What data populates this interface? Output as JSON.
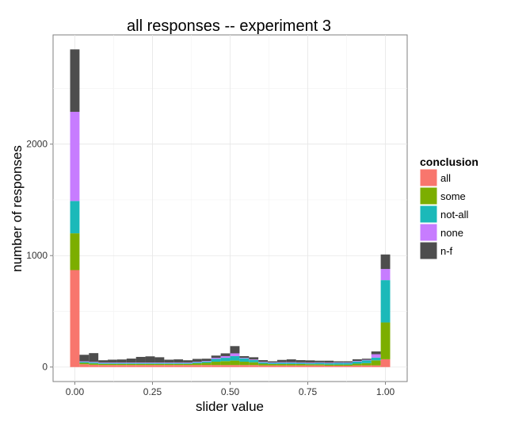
{
  "chart_data": {
    "type": "bar",
    "stacked": true,
    "title": "all responses -- experiment 3",
    "xlabel": "slider value",
    "ylabel": "number of responses",
    "xlim": [
      -0.07,
      1.07
    ],
    "ylim": [
      -130,
      2980
    ],
    "x_ticks": [
      0.0,
      0.25,
      0.5,
      0.75,
      1.0
    ],
    "x_tick_labels": [
      "0.00",
      "0.25",
      "0.50",
      "0.75",
      "1.00"
    ],
    "y_ticks": [
      0,
      1000,
      2000
    ],
    "y_tick_labels": [
      "0",
      "1000",
      "2000"
    ],
    "grid": true,
    "legend": {
      "title": "conclusion",
      "position": "right"
    },
    "bin_width": 0.0303,
    "bin_centers": [
      0.0,
      0.0303,
      0.0606,
      0.0909,
      0.1212,
      0.1515,
      0.1818,
      0.2121,
      0.2424,
      0.2727,
      0.303,
      0.3333,
      0.3636,
      0.3939,
      0.4242,
      0.4545,
      0.4848,
      0.5152,
      0.5455,
      0.5758,
      0.6061,
      0.6364,
      0.6667,
      0.697,
      0.7273,
      0.7576,
      0.7879,
      0.8182,
      0.8485,
      0.8788,
      0.9091,
      0.9394,
      0.9697,
      1.0
    ],
    "series": [
      {
        "name": "all",
        "color": "#F8766D",
        "values": [
          870,
          25,
          20,
          18,
          18,
          18,
          18,
          18,
          18,
          18,
          18,
          18,
          18,
          18,
          18,
          18,
          18,
          18,
          18,
          18,
          15,
          15,
          15,
          15,
          15,
          15,
          15,
          12,
          12,
          12,
          15,
          15,
          15,
          70
        ]
      },
      {
        "name": "some",
        "color": "#7CAE00",
        "values": [
          330,
          12,
          12,
          10,
          10,
          10,
          10,
          10,
          10,
          10,
          10,
          10,
          10,
          15,
          20,
          30,
          35,
          40,
          30,
          25,
          15,
          12,
          12,
          12,
          12,
          10,
          10,
          10,
          10,
          10,
          15,
          20,
          45,
          330
        ]
      },
      {
        "name": "not-all",
        "color": "#1BB9B9",
        "values": [
          290,
          10,
          10,
          8,
          8,
          8,
          8,
          8,
          8,
          8,
          8,
          8,
          8,
          10,
          12,
          25,
          30,
          40,
          30,
          20,
          12,
          10,
          12,
          12,
          10,
          10,
          12,
          12,
          15,
          15,
          20,
          25,
          25,
          380
        ]
      },
      {
        "name": "none",
        "color": "#C77CFF",
        "values": [
          800,
          5,
          5,
          5,
          5,
          5,
          5,
          5,
          5,
          5,
          5,
          5,
          5,
          5,
          5,
          10,
          15,
          25,
          5,
          5,
          5,
          5,
          5,
          5,
          5,
          5,
          5,
          5,
          5,
          5,
          5,
          5,
          30,
          100
        ]
      },
      {
        "name": "n-f",
        "color": "#4D4D4D",
        "values": [
          560,
          58,
          78,
          20,
          25,
          27,
          35,
          50,
          55,
          47,
          25,
          28,
          20,
          25,
          20,
          20,
          25,
          65,
          15,
          20,
          15,
          10,
          20,
          25,
          20,
          20,
          15,
          18,
          10,
          10,
          15,
          10,
          25,
          130
        ]
      }
    ]
  }
}
